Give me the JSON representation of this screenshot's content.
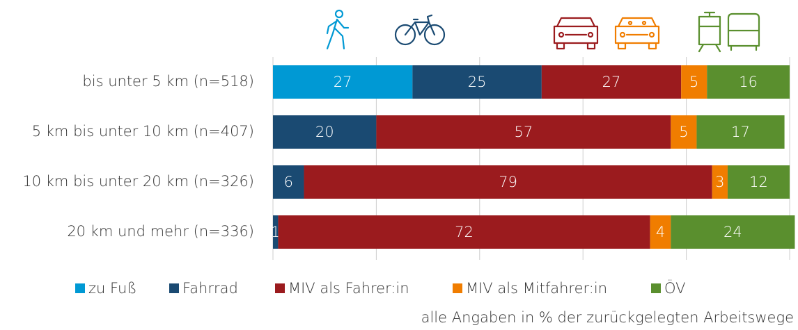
{
  "chart_data": {
    "type": "bar",
    "orientation": "horizontal",
    "stacked": true,
    "categories": [
      "bis unter 5 km (n=518)",
      "5 km bis unter 10 km (n=407)",
      "10 km bis unter 20 km (n=326)",
      "20 km und mehr (n=336)"
    ],
    "series": [
      {
        "name": "zu Fuß",
        "color": "#0099d4",
        "values": [
          27,
          null,
          null,
          null
        ]
      },
      {
        "name": "Fahrrad",
        "color": "#1a4a72",
        "values": [
          25,
          20,
          6,
          1
        ]
      },
      {
        "name": "MIV als Fahrer:in",
        "color": "#9b1b1e",
        "values": [
          27,
          57,
          79,
          72
        ]
      },
      {
        "name": "MIV als Mitfahrer:in",
        "color": "#f07d00",
        "values": [
          5,
          5,
          3,
          4
        ]
      },
      {
        "name": "ÖV",
        "color": "#5a8f2e",
        "values": [
          16,
          17,
          12,
          24
        ]
      }
    ],
    "xlim": [
      0,
      100
    ],
    "xticks": [
      0,
      20,
      40,
      60,
      80,
      100
    ],
    "grid": true,
    "annotation": "alle Angaben in % der zurückgelegten Arbeitswege"
  }
}
